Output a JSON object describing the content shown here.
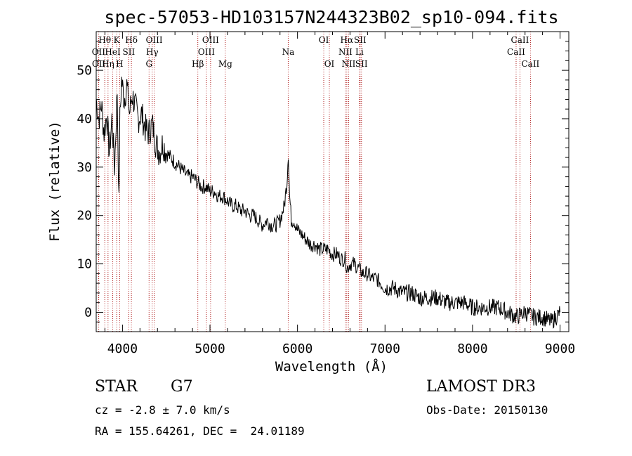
{
  "chart_data": {
    "type": "line",
    "title": "spec-57053-HD103157N244323B02_sp10-094.fits",
    "xlabel": "Wavelength (Å)",
    "ylabel": "Flux (relative)",
    "xlim": [
      3700,
      9100
    ],
    "ylim": [
      -4,
      58
    ],
    "xticks": [
      4000,
      5000,
      6000,
      7000,
      8000,
      9000
    ],
    "xtick_labels": [
      "4000",
      "5000",
      "6000",
      "7000",
      "8000",
      "9000"
    ],
    "yticks": [
      0,
      10,
      20,
      30,
      40,
      50
    ],
    "ytick_labels": [
      "0",
      "10",
      "20",
      "30",
      "40",
      "50"
    ],
    "series": [
      {
        "name": "spectrum",
        "x": [
          3700,
          3730,
          3760,
          3790,
          3820,
          3850,
          3880,
          3910,
          3940,
          3960,
          3970,
          3990,
          4020,
          4050,
          4080,
          4110,
          4140,
          4180,
          4220,
          4260,
          4300,
          4340,
          4380,
          4420,
          4460,
          4500,
          4550,
          4600,
          4650,
          4700,
          4750,
          4800,
          4850,
          4900,
          4950,
          5000,
          5050,
          5100,
          5150,
          5200,
          5250,
          5300,
          5350,
          5400,
          5450,
          5500,
          5550,
          5600,
          5650,
          5700,
          5750,
          5800,
          5850,
          5880,
          5895,
          5910,
          5930,
          5960,
          6000,
          6050,
          6100,
          6150,
          6200,
          6250,
          6300,
          6350,
          6400,
          6450,
          6500,
          6550,
          6563,
          6600,
          6650,
          6700,
          6750,
          6800,
          6850,
          6900,
          6950,
          7000,
          7100,
          7200,
          7300,
          7400,
          7500,
          7600,
          7700,
          7800,
          7900,
          8000,
          8100,
          8200,
          8300,
          8400,
          8500,
          8600,
          8700,
          8800,
          8900,
          9000
        ],
        "y": [
          44,
          40,
          43,
          37,
          41,
          33,
          40,
          30,
          46,
          22,
          40,
          48,
          44,
          47,
          41,
          45,
          43,
          40,
          41,
          38,
          37,
          39,
          35,
          33,
          35,
          33,
          32,
          31,
          30,
          29,
          28,
          28,
          27,
          26,
          26,
          25,
          25,
          24,
          24,
          23,
          22,
          22,
          21,
          21,
          20,
          20,
          19,
          18,
          19,
          18,
          18,
          19,
          22,
          27,
          33,
          24,
          19,
          19,
          17,
          16,
          15,
          14,
          14,
          13,
          13,
          13,
          12,
          12,
          11,
          11,
          9,
          10,
          10,
          9,
          8,
          8,
          7,
          7,
          6,
          5,
          5,
          4,
          4,
          3,
          3,
          3,
          2,
          2,
          2,
          1,
          1,
          1,
          1,
          0,
          -1,
          0,
          -1,
          -1,
          -2,
          0
        ]
      }
    ],
    "lines": [
      {
        "name": "Hθ",
        "wavelength": 3798,
        "row": 0
      },
      {
        "name": "OII",
        "wavelength": 3727,
        "row": 1
      },
      {
        "name": "OII",
        "wavelength": 3729,
        "row": 2
      },
      {
        "name": "HeI",
        "wavelength": 3889,
        "row": 1
      },
      {
        "name": "Hη",
        "wavelength": 3835,
        "row": 2
      },
      {
        "name": "K",
        "wavelength": 3934,
        "row": 0
      },
      {
        "name": "SII",
        "wavelength": 4072,
        "row": 1
      },
      {
        "name": "H",
        "wavelength": 3968,
        "row": 2
      },
      {
        "name": "Hδ",
        "wavelength": 4102,
        "row": 0
      },
      {
        "name": "OIII",
        "wavelength": 4363,
        "row": 0
      },
      {
        "name": "Hγ",
        "wavelength": 4340,
        "row": 1
      },
      {
        "name": "G",
        "wavelength": 4304,
        "row": 2
      },
      {
        "name": "Hβ",
        "wavelength": 4861,
        "row": 2
      },
      {
        "name": "OIII",
        "wavelength": 5007,
        "row": 0
      },
      {
        "name": "OIII",
        "wavelength": 4959,
        "row": 1
      },
      {
        "name": "Mg",
        "wavelength": 5175,
        "row": 2
      },
      {
        "name": "Na",
        "wavelength": 5894,
        "row": 1
      },
      {
        "name": "OI",
        "wavelength": 6300,
        "row": 0
      },
      {
        "name": "OI",
        "wavelength": 6364,
        "row": 2
      },
      {
        "name": "Hα",
        "wavelength": 6563,
        "row": 0
      },
      {
        "name": "NII",
        "wavelength": 6548,
        "row": 1
      },
      {
        "name": "NII",
        "wavelength": 6584,
        "row": 2
      },
      {
        "name": "SII",
        "wavelength": 6716,
        "row": 0
      },
      {
        "name": "Li",
        "wavelength": 6708,
        "row": 1
      },
      {
        "name": "SII",
        "wavelength": 6731,
        "row": 2
      },
      {
        "name": "CaII",
        "wavelength": 8542,
        "row": 0
      },
      {
        "name": "CaII",
        "wavelength": 8498,
        "row": 1
      },
      {
        "name": "CaII",
        "wavelength": 8662,
        "row": 2
      }
    ]
  },
  "info": {
    "class_label": "STAR",
    "subclass": "G7",
    "survey": "LAMOST DR3",
    "cz": "cz = -2.8 ± 7.0 km/s",
    "obs_date": "Obs-Date: 20150130",
    "coords": "RA = 155.64261, DEC =  24.01189"
  },
  "colors": {
    "line_marker": "#b22222",
    "spectrum": "#000000",
    "axes": "#000000"
  }
}
